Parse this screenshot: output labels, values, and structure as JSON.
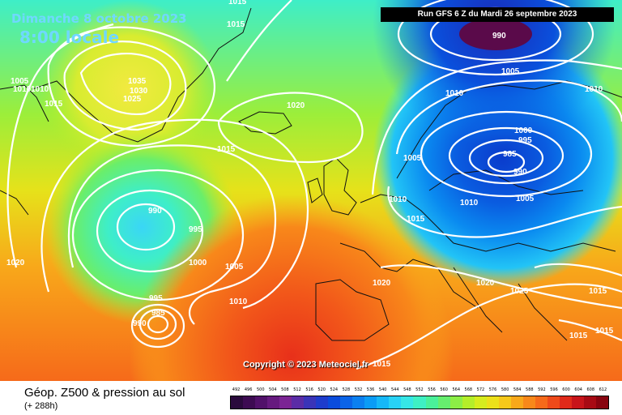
{
  "header": {
    "date": "Dimanche 8 octobre 2023",
    "time": "8:00 locale",
    "run": "Run GFS 6 Z du Mardi 26 septembre 2023"
  },
  "copyright": "Copyright © 2023 Meteociel.fr",
  "legend": {
    "title": "Géop. Z500 & pression au sol",
    "subtitle": "(+ 288h)",
    "scale": [
      {
        "label": "492",
        "color": "#2a0a3c"
      },
      {
        "label": "496",
        "color": "#3d0b52"
      },
      {
        "label": "500",
        "color": "#51116a"
      },
      {
        "label": "504",
        "color": "#661a7f"
      },
      {
        "label": "508",
        "color": "#7b2494"
      },
      {
        "label": "512",
        "color": "#5a2ca6"
      },
      {
        "label": "516",
        "color": "#3a34b8"
      },
      {
        "label": "520",
        "color": "#1e3ccc"
      },
      {
        "label": "524",
        "color": "#0a4cdc"
      },
      {
        "label": "528",
        "color": "#0a64e8"
      },
      {
        "label": "532",
        "color": "#0a80f0"
      },
      {
        "label": "536",
        "color": "#0a9cf6"
      },
      {
        "label": "540",
        "color": "#16b8f8"
      },
      {
        "label": "544",
        "color": "#28d2f6"
      },
      {
        "label": "548",
        "color": "#36e6e6"
      },
      {
        "label": "552",
        "color": "#3ef0c4"
      },
      {
        "label": "556",
        "color": "#4af09a"
      },
      {
        "label": "560",
        "color": "#66ee6e"
      },
      {
        "label": "564",
        "color": "#8cee46"
      },
      {
        "label": "568",
        "color": "#b4ee2a"
      },
      {
        "label": "572",
        "color": "#d6ec1e"
      },
      {
        "label": "576",
        "color": "#ece01a"
      },
      {
        "label": "580",
        "color": "#f6c81a"
      },
      {
        "label": "584",
        "color": "#f8a81a"
      },
      {
        "label": "588",
        "color": "#f8881a"
      },
      {
        "label": "592",
        "color": "#f66a1a"
      },
      {
        "label": "596",
        "color": "#ee4a1a"
      },
      {
        "label": "600",
        "color": "#e02a1a"
      },
      {
        "label": "604",
        "color": "#c8141a"
      },
      {
        "label": "608",
        "color": "#a80a14"
      },
      {
        "label": "612",
        "color": "#880410"
      }
    ]
  },
  "isobar_labels": [
    {
      "text": "990"
    },
    {
      "text": "1005"
    },
    {
      "text": "1010"
    },
    {
      "text": "1000"
    },
    {
      "text": "995"
    },
    {
      "text": "985"
    },
    {
      "text": "990"
    },
    {
      "text": "1005"
    },
    {
      "text": "1010"
    },
    {
      "text": "1005"
    },
    {
      "text": "1010"
    },
    {
      "text": "1015"
    },
    {
      "text": "1035"
    },
    {
      "text": "1030"
    },
    {
      "text": "1025"
    },
    {
      "text": "1020"
    },
    {
      "text": "1015"
    },
    {
      "text": "1015"
    },
    {
      "text": "1005"
    },
    {
      "text": "1010"
    },
    {
      "text": "1015"
    },
    {
      "text": "990"
    },
    {
      "text": "995"
    },
    {
      "text": "1000"
    },
    {
      "text": "1005"
    },
    {
      "text": "1010"
    },
    {
      "text": "1020"
    },
    {
      "text": "995"
    },
    {
      "text": "985"
    },
    {
      "text": "990"
    },
    {
      "text": "1020"
    },
    {
      "text": "1020"
    },
    {
      "text": "1025"
    },
    {
      "text": "1015"
    },
    {
      "text": "1015"
    },
    {
      "text": "1015"
    },
    {
      "text": "1015"
    },
    {
      "text": "1010"
    },
    {
      "text": "1010"
    },
    {
      "text": "1015"
    }
  ]
}
